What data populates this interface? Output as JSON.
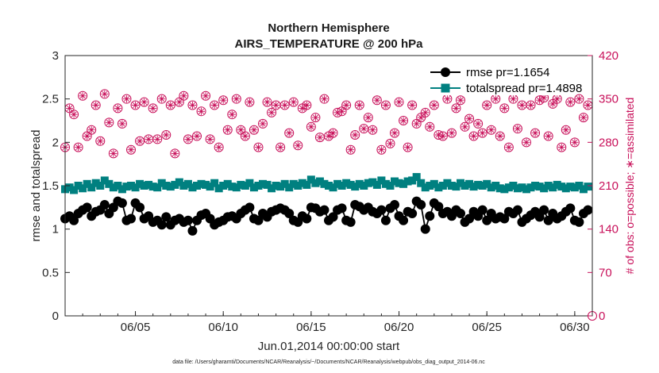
{
  "chart_data": {
    "type": "line",
    "title": "Northern Hemisphere",
    "subtitle": "AIRS_TEMPERATURE @ 200 hPa",
    "xlabel": "Jun.01,2014 00:00:00 start",
    "ylabel": "rmse and totalspread",
    "y2label": "# of obs: o=possible; ∗=assimilated",
    "xlim": [
      1,
      31
    ],
    "ylim": [
      0,
      3
    ],
    "y2lim": [
      0,
      420
    ],
    "xticks": [
      5,
      10,
      15,
      20,
      25,
      30
    ],
    "xtick_labels": [
      "06/05",
      "06/10",
      "06/15",
      "06/20",
      "06/25",
      "06/30"
    ],
    "yticks": [
      0,
      0.5,
      1,
      1.5,
      2,
      2.5,
      3
    ],
    "ytick_labels": [
      "0",
      "0.5",
      "1",
      "1.5",
      "2",
      "2.5",
      "3"
    ],
    "y2ticks": [
      0,
      70,
      140,
      210,
      280,
      350,
      420
    ],
    "y2tick_labels": [
      "0",
      "70",
      "140",
      "210",
      "280",
      "350",
      "420"
    ],
    "grid": false,
    "legend_position": "top-right",
    "colors": {
      "rmse": "#000000",
      "totalspread": "#008080",
      "obs": "#c8105a"
    },
    "series": [
      {
        "name": "rmse pr=1.1654",
        "axis": "left",
        "x": [
          1.0,
          1.25,
          1.5,
          1.75,
          2.0,
          2.25,
          2.5,
          2.75,
          3.0,
          3.25,
          3.5,
          3.75,
          4.0,
          4.25,
          4.5,
          4.75,
          5.0,
          5.25,
          5.5,
          5.75,
          6.0,
          6.25,
          6.5,
          6.75,
          7.0,
          7.25,
          7.5,
          7.75,
          8.0,
          8.25,
          8.5,
          8.75,
          9.0,
          9.25,
          9.5,
          9.75,
          10.0,
          10.25,
          10.5,
          10.75,
          11.0,
          11.25,
          11.5,
          11.75,
          12.0,
          12.25,
          12.5,
          12.75,
          13.0,
          13.25,
          13.5,
          13.75,
          14.0,
          14.25,
          14.5,
          14.75,
          15.0,
          15.25,
          15.5,
          15.75,
          16.0,
          16.25,
          16.5,
          16.75,
          17.0,
          17.25,
          17.5,
          17.75,
          18.0,
          18.25,
          18.5,
          18.75,
          19.0,
          19.25,
          19.5,
          19.75,
          20.0,
          20.25,
          20.5,
          20.75,
          21.0,
          21.25,
          21.5,
          21.75,
          22.0,
          22.25,
          22.5,
          22.75,
          23.0,
          23.25,
          23.5,
          23.75,
          24.0,
          24.25,
          24.5,
          24.75,
          25.0,
          25.25,
          25.5,
          25.75,
          26.0,
          26.25,
          26.5,
          26.75,
          27.0,
          27.25,
          27.5,
          27.75,
          28.0,
          28.25,
          28.5,
          28.75,
          29.0,
          29.25,
          29.5,
          29.75,
          30.0,
          30.25,
          30.5,
          30.75
        ],
        "values": [
          1.12,
          1.15,
          1.1,
          1.18,
          1.22,
          1.25,
          1.15,
          1.2,
          1.22,
          1.28,
          1.18,
          1.25,
          1.32,
          1.3,
          1.1,
          1.12,
          1.3,
          1.25,
          1.12,
          1.15,
          1.08,
          1.1,
          1.05,
          1.14,
          1.05,
          1.1,
          1.12,
          1.08,
          1.1,
          0.98,
          1.1,
          1.16,
          1.18,
          1.12,
          1.05,
          1.08,
          1.1,
          1.14,
          1.15,
          1.12,
          1.18,
          1.22,
          1.25,
          1.12,
          1.1,
          1.18,
          1.14,
          1.2,
          1.22,
          1.24,
          1.22,
          1.18,
          1.1,
          1.08,
          1.15,
          1.12,
          1.25,
          1.24,
          1.2,
          1.22,
          1.1,
          1.14,
          1.22,
          1.24,
          1.1,
          1.08,
          1.28,
          1.26,
          1.22,
          1.25,
          1.2,
          1.18,
          1.22,
          1.1,
          1.24,
          1.28,
          1.15,
          1.1,
          1.2,
          1.18,
          1.32,
          1.28,
          1.0,
          1.15,
          1.3,
          1.26,
          1.18,
          1.2,
          1.15,
          1.22,
          1.18,
          1.08,
          1.12,
          1.2,
          1.15,
          1.22,
          1.1,
          1.18,
          1.12,
          1.14,
          1.12,
          1.2,
          1.18,
          1.22,
          1.08,
          1.12,
          1.16,
          1.2,
          1.14,
          1.22,
          1.1,
          1.18,
          1.12,
          1.15,
          1.2,
          1.24,
          1.1,
          1.08,
          1.18,
          1.22
        ]
      },
      {
        "name": "totalspread pr=1.4898",
        "axis": "left",
        "x": [
          1.0,
          1.25,
          1.5,
          1.75,
          2.0,
          2.25,
          2.5,
          2.75,
          3.0,
          3.25,
          3.5,
          3.75,
          4.0,
          4.25,
          4.5,
          4.75,
          5.0,
          5.25,
          5.5,
          5.75,
          6.0,
          6.25,
          6.5,
          6.75,
          7.0,
          7.25,
          7.5,
          7.75,
          8.0,
          8.25,
          8.5,
          8.75,
          9.0,
          9.25,
          9.5,
          9.75,
          10.0,
          10.25,
          10.5,
          10.75,
          11.0,
          11.25,
          11.5,
          11.75,
          12.0,
          12.25,
          12.5,
          12.75,
          13.0,
          13.25,
          13.5,
          13.75,
          14.0,
          14.25,
          14.5,
          14.75,
          15.0,
          15.25,
          15.5,
          15.75,
          16.0,
          16.25,
          16.5,
          16.75,
          17.0,
          17.25,
          17.5,
          17.75,
          18.0,
          18.25,
          18.5,
          18.75,
          19.0,
          19.25,
          19.5,
          19.75,
          20.0,
          20.25,
          20.5,
          20.75,
          21.0,
          21.25,
          21.5,
          21.75,
          22.0,
          22.25,
          22.5,
          22.75,
          23.0,
          23.25,
          23.5,
          23.75,
          24.0,
          24.25,
          24.5,
          24.75,
          25.0,
          25.25,
          25.5,
          25.75,
          26.0,
          26.25,
          26.5,
          26.75,
          27.0,
          27.25,
          27.5,
          27.75,
          28.0,
          28.25,
          28.5,
          28.75,
          29.0,
          29.25,
          29.5,
          29.75,
          30.0,
          30.25,
          30.5,
          30.75
        ],
        "values": [
          1.46,
          1.48,
          1.45,
          1.5,
          1.47,
          1.52,
          1.48,
          1.53,
          1.5,
          1.56,
          1.52,
          1.48,
          1.5,
          1.46,
          1.49,
          1.5,
          1.48,
          1.52,
          1.5,
          1.51,
          1.49,
          1.48,
          1.53,
          1.5,
          1.49,
          1.51,
          1.54,
          1.5,
          1.52,
          1.48,
          1.5,
          1.52,
          1.51,
          1.49,
          1.53,
          1.47,
          1.5,
          1.52,
          1.49,
          1.48,
          1.51,
          1.5,
          1.53,
          1.48,
          1.5,
          1.52,
          1.51,
          1.47,
          1.5,
          1.49,
          1.52,
          1.48,
          1.52,
          1.5,
          1.53,
          1.51,
          1.57,
          1.53,
          1.55,
          1.52,
          1.5,
          1.48,
          1.52,
          1.5,
          1.53,
          1.51,
          1.49,
          1.52,
          1.5,
          1.53,
          1.54,
          1.51,
          1.56,
          1.52,
          1.5,
          1.55,
          1.53,
          1.52,
          1.55,
          1.56,
          1.6,
          1.53,
          1.48,
          1.5,
          1.52,
          1.48,
          1.5,
          1.53,
          1.5,
          1.49,
          1.53,
          1.5,
          1.52,
          1.49,
          1.51,
          1.5,
          1.52,
          1.48,
          1.5,
          1.47,
          1.46,
          1.48,
          1.5,
          1.47,
          1.48,
          1.46,
          1.48,
          1.5,
          1.49,
          1.47,
          1.5,
          1.48,
          1.51,
          1.49,
          1.47,
          1.49,
          1.48,
          1.5,
          1.46,
          1.49
        ]
      },
      {
        "name": "obs possible",
        "axis": "right",
        "marker": "circle",
        "x": [
          1.0,
          1.25,
          1.5,
          1.75,
          2.0,
          2.25,
          2.5,
          2.75,
          3.0,
          3.25,
          3.5,
          3.75,
          4.0,
          4.25,
          4.5,
          4.75,
          5.0,
          5.25,
          5.5,
          5.75,
          6.0,
          6.25,
          6.5,
          6.75,
          7.0,
          7.25,
          7.5,
          7.75,
          8.0,
          8.25,
          8.5,
          8.75,
          9.0,
          9.25,
          9.5,
          9.75,
          10.0,
          10.25,
          10.5,
          10.75,
          11.0,
          11.25,
          11.5,
          11.75,
          12.0,
          12.25,
          12.5,
          12.75,
          13.0,
          13.25,
          13.5,
          13.75,
          14.0,
          14.25,
          14.5,
          14.75,
          15.0,
          15.25,
          15.5,
          15.75,
          16.0,
          16.25,
          16.5,
          16.75,
          17.0,
          17.25,
          17.5,
          17.75,
          18.0,
          18.25,
          18.5,
          18.75,
          19.0,
          19.25,
          19.5,
          19.75,
          20.0,
          20.25,
          20.5,
          20.75,
          21.0,
          21.25,
          21.5,
          21.75,
          22.0,
          22.25,
          22.5,
          22.75,
          23.0,
          23.25,
          23.5,
          23.75,
          24.0,
          24.25,
          24.5,
          24.75,
          25.0,
          25.25,
          25.5,
          25.75,
          26.0,
          26.25,
          26.5,
          26.75,
          27.0,
          27.25,
          27.5,
          27.75,
          28.0,
          28.25,
          28.5,
          28.75,
          29.0,
          29.25,
          29.5,
          29.75,
          30.0,
          30.25,
          30.5,
          30.75
        ],
        "values": [
          272,
          335,
          325,
          272,
          355,
          290,
          300,
          340,
          282,
          358,
          312,
          262,
          335,
          310,
          350,
          268,
          340,
          282,
          345,
          285,
          335,
          285,
          350,
          292,
          340,
          262,
          345,
          355,
          285,
          340,
          290,
          330,
          355,
          285,
          340,
          272,
          348,
          300,
          325,
          350,
          300,
          290,
          345,
          300,
          272,
          310,
          345,
          328,
          340,
          272,
          340,
          295,
          345,
          275,
          335,
          340,
          305,
          320,
          288,
          350,
          290,
          295,
          328,
          330,
          340,
          268,
          292,
          340,
          302,
          320,
          300,
          348,
          268,
          340,
          278,
          295,
          345,
          315,
          272,
          340,
          310,
          320,
          328,
          305,
          340,
          292,
          290,
          350,
          295,
          335,
          348,
          305,
          318,
          290,
          310,
          295,
          340,
          300,
          350,
          290,
          335,
          272,
          350,
          302,
          340,
          280,
          340,
          295,
          348,
          352,
          290,
          342,
          350,
          272,
          300,
          345,
          280,
          350,
          320,
          340
        ]
      },
      {
        "name": "obs assimilated",
        "axis": "right",
        "marker": "asterisk",
        "x": [
          1.0,
          1.25,
          1.5,
          1.75,
          2.0,
          2.25,
          2.5,
          2.75,
          3.0,
          3.25,
          3.5,
          3.75,
          4.0,
          4.25,
          4.5,
          4.75,
          5.0,
          5.25,
          5.5,
          5.75,
          6.0,
          6.25,
          6.5,
          6.75,
          7.0,
          7.25,
          7.5,
          7.75,
          8.0,
          8.25,
          8.5,
          8.75,
          9.0,
          9.25,
          9.5,
          9.75,
          10.0,
          10.25,
          10.5,
          10.75,
          11.0,
          11.25,
          11.5,
          11.75,
          12.0,
          12.25,
          12.5,
          12.75,
          13.0,
          13.25,
          13.5,
          13.75,
          14.0,
          14.25,
          14.5,
          14.75,
          15.0,
          15.25,
          15.5,
          15.75,
          16.0,
          16.25,
          16.5,
          16.75,
          17.0,
          17.25,
          17.5,
          17.75,
          18.0,
          18.25,
          18.5,
          18.75,
          19.0,
          19.25,
          19.5,
          19.75,
          20.0,
          20.25,
          20.5,
          20.75,
          21.0,
          21.25,
          21.5,
          21.75,
          22.0,
          22.25,
          22.5,
          22.75,
          23.0,
          23.25,
          23.5,
          23.75,
          24.0,
          24.25,
          24.5,
          24.75,
          25.0,
          25.25,
          25.5,
          25.75,
          26.0,
          26.25,
          26.5,
          26.75,
          27.0,
          27.25,
          27.5,
          27.75,
          28.0,
          28.25,
          28.5,
          28.75,
          29.0,
          29.25,
          29.5,
          29.75,
          30.0,
          30.25,
          30.5,
          30.75
        ],
        "values": [
          272,
          335,
          325,
          272,
          355,
          290,
          300,
          340,
          282,
          358,
          312,
          262,
          335,
          310,
          350,
          268,
          340,
          282,
          345,
          285,
          335,
          285,
          350,
          292,
          340,
          262,
          345,
          355,
          285,
          340,
          290,
          330,
          355,
          285,
          340,
          272,
          348,
          300,
          325,
          350,
          300,
          290,
          345,
          300,
          272,
          310,
          345,
          328,
          340,
          272,
          340,
          295,
          345,
          275,
          335,
          340,
          305,
          320,
          288,
          350,
          290,
          295,
          328,
          330,
          340,
          268,
          292,
          340,
          302,
          320,
          300,
          348,
          268,
          340,
          278,
          295,
          345,
          315,
          272,
          340,
          310,
          320,
          328,
          305,
          340,
          292,
          290,
          350,
          295,
          335,
          348,
          305,
          318,
          290,
          310,
          295,
          340,
          300,
          350,
          290,
          335,
          272,
          350,
          302,
          340,
          280,
          340,
          295,
          348,
          352,
          290,
          342,
          350,
          272,
          300,
          345,
          280,
          350,
          320,
          340
        ]
      }
    ],
    "annotations": [
      "data file: /Users/gharamti/Documents/NCAR/Reanalysis/~/Documents/NCAR/Reanalysis/webpub/obs_diag_output_2014-06.nc"
    ]
  }
}
